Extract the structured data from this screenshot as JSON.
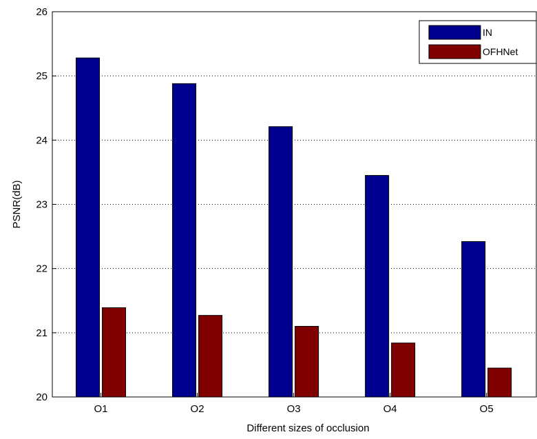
{
  "chart_data": {
    "type": "bar",
    "title": "",
    "xlabel": "Different sizes of occlusion",
    "ylabel": "PSNR(dB)",
    "categories": [
      "O1",
      "O2",
      "O3",
      "O4",
      "O5"
    ],
    "series": [
      {
        "name": "IN",
        "color": "#00008f",
        "values": [
          25.28,
          24.88,
          24.21,
          23.45,
          22.42
        ]
      },
      {
        "name": "OFHNet",
        "color": "#800000",
        "values": [
          21.39,
          21.27,
          21.1,
          20.84,
          20.45
        ]
      }
    ],
    "ylim": [
      20,
      26
    ],
    "yticks": [
      "20",
      "21",
      "22",
      "23",
      "24",
      "25",
      "26"
    ],
    "grid": "y-dotted",
    "legend_position": "top-right"
  }
}
